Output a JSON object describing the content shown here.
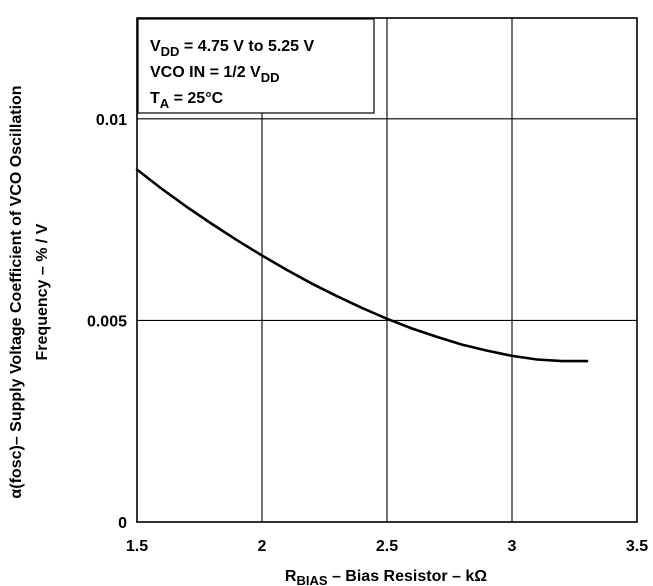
{
  "chart_data": {
    "type": "line",
    "x_axis": {
      "main": "R",
      "sub": "BIAS",
      "rest": " – Bias Resistor – kΩ",
      "ticks": [
        1.5,
        2,
        2.5,
        3,
        3.5
      ],
      "tick_labels": [
        "1.5",
        "2",
        "2.5",
        "3",
        "3.5"
      ],
      "range": [
        1.5,
        3.5
      ]
    },
    "y_axis": {
      "line1": "α(fosc)– Supply Voltage Coefficient of VCO Oscillation",
      "line2": "Frequency – % / V",
      "ticks": [
        0,
        0.005,
        0.01
      ],
      "tick_labels": [
        "0",
        "0.005",
        "0.01"
      ],
      "range": [
        0,
        0.0125
      ]
    },
    "grid": true,
    "annotation": {
      "line1_main": "V",
      "line1_sub": "DD",
      "line1_rest": " = 4.75 V to 5.25 V",
      "line2_main": "VCO IN = 1/2 V",
      "line2_sub": "DD",
      "line3_main": "T",
      "line3_sub": "A",
      "line3_rest": " = 25°C"
    },
    "series": [
      {
        "x": [
          1.5,
          1.6,
          1.7,
          1.8,
          1.9,
          2.0,
          2.1,
          2.2,
          2.3,
          2.4,
          2.5,
          2.6,
          2.7,
          2.8,
          2.9,
          3.0,
          3.1,
          3.2,
          3.3
        ],
        "y": [
          0.00874,
          0.00826,
          0.00781,
          0.00739,
          0.00699,
          0.00661,
          0.00625,
          0.00591,
          0.0056,
          0.00531,
          0.00504,
          0.0048,
          0.00459,
          0.0044,
          0.00425,
          0.00412,
          0.00403,
          0.00399,
          0.00399
        ]
      }
    ]
  }
}
